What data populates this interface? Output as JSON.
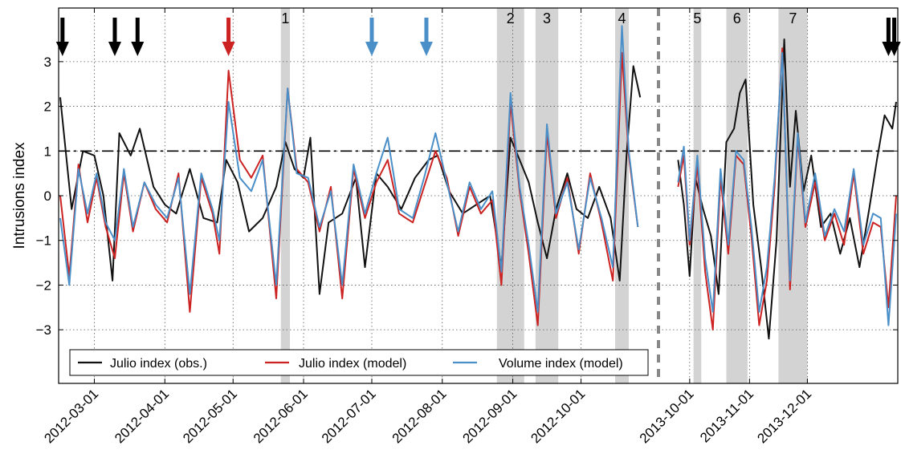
{
  "chart_data": {
    "type": "line",
    "ylabel": "Intrusions index",
    "ylim": [
      -4.2,
      4.2
    ],
    "yticks": [
      -3,
      -2,
      -1,
      0,
      1,
      2,
      3
    ],
    "threshold": 1,
    "grid": true,
    "legend_position": "bottom",
    "segments": [
      {
        "start": "2012-02-15",
        "end": "2012-10-28",
        "label_offset": 0
      },
      {
        "start": "2013-09-24",
        "end": "2014-01-16",
        "label_offset": 0
      }
    ],
    "xticks": [
      "2012-03-01",
      "2012-04-01",
      "2012-05-01",
      "2012-06-01",
      "2012-07-01",
      "2012-08-01",
      "2012-09-01",
      "2012-10-01",
      "2013-10-01",
      "2013-11-01",
      "2013-12-01"
    ],
    "events": [
      {
        "label": "1",
        "start": "2012-05-22",
        "end": "2012-05-26"
      },
      {
        "label": "2",
        "start": "2012-08-25",
        "end": "2012-09-06"
      },
      {
        "label": "3",
        "start": "2012-09-11",
        "end": "2012-09-21"
      },
      {
        "label": "4",
        "start": "2012-10-16",
        "end": "2012-10-22"
      },
      {
        "label": "5",
        "start": "2013-10-03",
        "end": "2013-10-07"
      },
      {
        "label": "6",
        "start": "2013-10-20",
        "end": "2013-10-31"
      },
      {
        "label": "7",
        "start": "2013-11-16",
        "end": "2013-12-01"
      }
    ],
    "arrows": [
      {
        "date": "2012-02-16",
        "color": "#000000"
      },
      {
        "date": "2012-03-10",
        "color": "#000000"
      },
      {
        "date": "2012-03-20",
        "color": "#000000"
      },
      {
        "date": "2012-04-29",
        "color": "#cc2222"
      },
      {
        "date": "2012-07-01",
        "color": "#4a8fc8"
      },
      {
        "date": "2012-07-25",
        "color": "#4a8fc8"
      },
      {
        "date": "2014-01-12",
        "color": "#000000"
      },
      {
        "date": "2014-01-15",
        "color": "#000000"
      }
    ],
    "series": [
      {
        "name": "Julio index (obs.)",
        "color": "#111111",
        "x": [
          "2012-02-15",
          "2012-02-20",
          "2012-02-25",
          "2012-03-01",
          "2012-03-05",
          "2012-03-09",
          "2012-03-12",
          "2012-03-17",
          "2012-03-21",
          "2012-03-27",
          "2012-04-01",
          "2012-04-06",
          "2012-04-12",
          "2012-04-18",
          "2012-04-24",
          "2012-04-28",
          "2012-05-03",
          "2012-05-08",
          "2012-05-14",
          "2012-05-20",
          "2012-05-24",
          "2012-05-28",
          "2012-06-01",
          "2012-06-04",
          "2012-06-08",
          "2012-06-12",
          "2012-06-18",
          "2012-06-24",
          "2012-06-28",
          "2012-07-03",
          "2012-07-08",
          "2012-07-14",
          "2012-07-20",
          "2012-07-26",
          "2012-07-30",
          "2012-08-04",
          "2012-08-10",
          "2012-08-16",
          "2012-08-22",
          "2012-08-27",
          "2012-08-31",
          "2012-09-04",
          "2012-09-08",
          "2012-09-12",
          "2012-09-16",
          "2012-09-20",
          "2012-09-25",
          "2012-09-29",
          "2012-10-04",
          "2012-10-09",
          "2012-10-14",
          "2012-10-18",
          "2012-10-21",
          "2012-10-24",
          "2012-10-27",
          "2013-09-25",
          "2013-09-28",
          "2013-10-01",
          "2013-10-04",
          "2013-10-08",
          "2013-10-12",
          "2013-10-16",
          "2013-10-20",
          "2013-10-24",
          "2013-10-27",
          "2013-10-30",
          "2013-11-03",
          "2013-11-07",
          "2013-11-11",
          "2013-11-15",
          "2013-11-19",
          "2013-11-22",
          "2013-11-25",
          "2013-11-29",
          "2013-12-03",
          "2013-12-08",
          "2013-12-13",
          "2013-12-18",
          "2013-12-23",
          "2013-12-28",
          "2014-01-02",
          "2014-01-06",
          "2014-01-10",
          "2014-01-14",
          "2014-01-16"
        ],
        "y": [
          2.2,
          -0.3,
          1.0,
          0.9,
          0.0,
          -1.9,
          1.4,
          0.9,
          1.5,
          0.2,
          -0.2,
          -0.4,
          0.6,
          -0.5,
          -0.6,
          0.8,
          0.3,
          -0.8,
          -0.5,
          0.2,
          1.2,
          0.6,
          0.4,
          1.3,
          -2.2,
          -0.6,
          -0.4,
          0.4,
          -1.6,
          0.5,
          0.2,
          -0.3,
          0.4,
          0.8,
          0.9,
          0.1,
          -0.4,
          -0.2,
          0.0,
          -1.6,
          1.3,
          0.8,
          0.3,
          -0.6,
          -1.4,
          -0.3,
          0.5,
          -0.3,
          -0.5,
          0.2,
          -0.5,
          -1.9,
          0.9,
          2.9,
          2.2,
          0.8,
          -0.2,
          -1.8,
          0.4,
          -0.3,
          -0.9,
          -2.2,
          1.2,
          1.5,
          2.3,
          2.6,
          -0.2,
          -1.6,
          -3.2,
          -1.0,
          3.5,
          0.2,
          1.9,
          0.1,
          0.9,
          -0.7,
          -0.4,
          -1.3,
          -0.5,
          -1.6,
          -0.3,
          0.8,
          1.8,
          1.5,
          2.1
        ]
      },
      {
        "name": "Julio index (model)",
        "color": "#cc2222",
        "x": [
          "2012-02-15",
          "2012-02-19",
          "2012-02-23",
          "2012-02-27",
          "2012-03-02",
          "2012-03-06",
          "2012-03-10",
          "2012-03-14",
          "2012-03-18",
          "2012-03-23",
          "2012-03-28",
          "2012-04-02",
          "2012-04-07",
          "2012-04-12",
          "2012-04-17",
          "2012-04-22",
          "2012-04-25",
          "2012-04-29",
          "2012-05-04",
          "2012-05-09",
          "2012-05-14",
          "2012-05-20",
          "2012-05-25",
          "2012-05-29",
          "2012-06-03",
          "2012-06-08",
          "2012-06-13",
          "2012-06-18",
          "2012-06-23",
          "2012-06-28",
          "2012-07-03",
          "2012-07-08",
          "2012-07-13",
          "2012-07-19",
          "2012-07-24",
          "2012-07-29",
          "2012-08-03",
          "2012-08-08",
          "2012-08-13",
          "2012-08-18",
          "2012-08-23",
          "2012-08-27",
          "2012-08-31",
          "2012-09-04",
          "2012-09-08",
          "2012-09-12",
          "2012-09-16",
          "2012-09-20",
          "2012-09-25",
          "2012-09-30",
          "2012-10-05",
          "2012-10-10",
          "2012-10-15",
          "2012-10-19",
          "2012-10-22",
          "2012-10-26",
          "2013-09-25",
          "2013-09-28",
          "2013-10-01",
          "2013-10-05",
          "2013-10-09",
          "2013-10-13",
          "2013-10-17",
          "2013-10-21",
          "2013-10-25",
          "2013-10-29",
          "2013-11-02",
          "2013-11-06",
          "2013-11-10",
          "2013-11-14",
          "2013-11-18",
          "2013-11-22",
          "2013-11-26",
          "2013-11-30",
          "2013-12-05",
          "2013-12-10",
          "2013-12-15",
          "2013-12-20",
          "2013-12-25",
          "2013-12-30",
          "2014-01-04",
          "2014-01-08",
          "2014-01-12",
          "2014-01-16"
        ],
        "y": [
          0.0,
          -1.8,
          0.7,
          -0.6,
          0.4,
          -0.7,
          -1.4,
          0.5,
          -0.8,
          0.3,
          -0.3,
          -0.6,
          0.5,
          -2.6,
          0.4,
          -0.4,
          -1.3,
          2.8,
          0.8,
          0.4,
          0.9,
          -2.3,
          2.4,
          0.6,
          0.3,
          -0.8,
          0.2,
          -2.3,
          0.6,
          -0.5,
          0.3,
          0.8,
          -0.4,
          -0.6,
          0.2,
          1.0,
          0.4,
          -0.9,
          0.2,
          -0.4,
          -0.1,
          -2.0,
          2.1,
          0.1,
          -1.3,
          -2.9,
          1.4,
          -0.5,
          0.4,
          -1.3,
          0.5,
          -0.6,
          -1.9,
          3.2,
          0.9,
          -0.7,
          0.2,
          0.9,
          -1.1,
          0.7,
          -1.7,
          -3.0,
          0.4,
          -1.3,
          0.9,
          0.7,
          -0.9,
          -2.9,
          -1.9,
          0.2,
          3.3,
          -2.1,
          1.3,
          -0.7,
          0.3,
          -1.0,
          -0.4,
          -1.1,
          0.5,
          -1.3,
          -0.6,
          -0.7,
          -2.5,
          0.0
        ]
      },
      {
        "name": "Volume index (model)",
        "color": "#4a8fc8",
        "x": [
          "2012-02-15",
          "2012-02-19",
          "2012-02-23",
          "2012-02-27",
          "2012-03-02",
          "2012-03-06",
          "2012-03-10",
          "2012-03-14",
          "2012-03-18",
          "2012-03-23",
          "2012-03-28",
          "2012-04-02",
          "2012-04-07",
          "2012-04-12",
          "2012-04-17",
          "2012-04-22",
          "2012-04-25",
          "2012-04-29",
          "2012-05-04",
          "2012-05-09",
          "2012-05-14",
          "2012-05-20",
          "2012-05-25",
          "2012-05-29",
          "2012-06-03",
          "2012-06-08",
          "2012-06-13",
          "2012-06-18",
          "2012-06-23",
          "2012-06-28",
          "2012-07-03",
          "2012-07-08",
          "2012-07-13",
          "2012-07-19",
          "2012-07-24",
          "2012-07-29",
          "2012-08-03",
          "2012-08-08",
          "2012-08-13",
          "2012-08-18",
          "2012-08-23",
          "2012-08-27",
          "2012-08-31",
          "2012-09-04",
          "2012-09-08",
          "2012-09-12",
          "2012-09-16",
          "2012-09-20",
          "2012-09-25",
          "2012-09-30",
          "2012-10-05",
          "2012-10-10",
          "2012-10-15",
          "2012-10-19",
          "2012-10-22",
          "2012-10-26",
          "2013-09-25",
          "2013-09-28",
          "2013-10-01",
          "2013-10-05",
          "2013-10-09",
          "2013-10-13",
          "2013-10-17",
          "2013-10-21",
          "2013-10-25",
          "2013-10-29",
          "2013-11-02",
          "2013-11-06",
          "2013-11-10",
          "2013-11-14",
          "2013-11-18",
          "2013-11-22",
          "2013-11-26",
          "2013-11-30",
          "2013-12-05",
          "2013-12-10",
          "2013-12-15",
          "2013-12-20",
          "2013-12-25",
          "2013-12-30",
          "2014-01-04",
          "2014-01-08",
          "2014-01-12",
          "2014-01-16"
        ],
        "y": [
          -0.5,
          -2.0,
          0.6,
          -0.4,
          0.5,
          -0.6,
          -1.0,
          0.6,
          -0.7,
          0.3,
          -0.2,
          -0.5,
          0.4,
          -2.2,
          0.5,
          -0.3,
          -1.0,
          2.1,
          0.4,
          0.1,
          0.8,
          -2.0,
          2.4,
          0.5,
          0.4,
          -0.7,
          0.1,
          -2.0,
          0.7,
          -0.4,
          0.5,
          1.3,
          -0.3,
          -0.5,
          0.4,
          1.4,
          0.3,
          -0.8,
          0.3,
          -0.3,
          0.1,
          -1.7,
          2.3,
          0.2,
          -1.1,
          -2.6,
          1.6,
          -0.4,
          0.3,
          -1.2,
          0.4,
          -0.5,
          -1.6,
          3.8,
          1.0,
          -0.7,
          0.3,
          1.1,
          -1.0,
          0.9,
          -1.4,
          -2.6,
          0.6,
          -1.1,
          1.0,
          0.8,
          -0.7,
          -2.6,
          -1.6,
          0.4,
          3.2,
          -1.9,
          1.4,
          -0.6,
          0.5,
          -0.9,
          -0.3,
          -0.8,
          0.6,
          -1.1,
          -0.4,
          -0.5,
          -2.9,
          -0.4
        ]
      }
    ]
  }
}
